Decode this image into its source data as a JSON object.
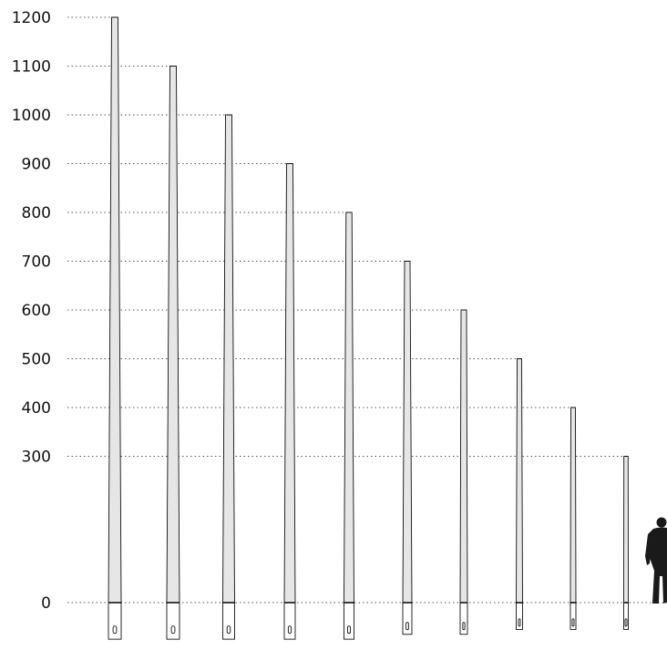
{
  "chart_data": {
    "type": "bar",
    "title": "",
    "xlabel": "",
    "ylabel": "",
    "ylim": [
      0,
      1200
    ],
    "grid": "dotted horizontal guide at each pole top",
    "y_ticks": [
      "0",
      "300",
      "400",
      "500",
      "600",
      "700",
      "800",
      "900",
      "1000",
      "1100",
      "1200"
    ],
    "y_tick_values": [
      0,
      300,
      400,
      500,
      600,
      700,
      800,
      900,
      1000,
      1100,
      1200
    ],
    "poles": [
      {
        "height": 1200,
        "base_depth": 75
      },
      {
        "height": 1100,
        "base_depth": 75
      },
      {
        "height": 1000,
        "base_depth": 75
      },
      {
        "height": 900,
        "base_depth": 75
      },
      {
        "height": 800,
        "base_depth": 75
      },
      {
        "height": 700,
        "base_depth": 65
      },
      {
        "height": 600,
        "base_depth": 65
      },
      {
        "height": 500,
        "base_depth": 55
      },
      {
        "height": 400,
        "base_depth": 55
      },
      {
        "height": 300,
        "base_depth": 55
      }
    ],
    "colors": {
      "pole_fill": "#e6e6e6",
      "outline": "#111111",
      "guide": "#555555",
      "silhouette": "#1a1a1a"
    },
    "scale_reference": "human-silhouette-icon"
  }
}
